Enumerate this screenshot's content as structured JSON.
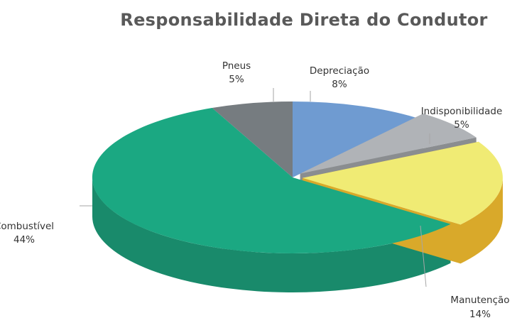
{
  "chart_data": {
    "type": "pie",
    "title": "Responsabilidade Direta do Condutor",
    "slices": [
      {
        "label": "Depreciação",
        "value": 8,
        "value_label": "8%",
        "color": "#6f9bd1",
        "side_color": "#4a7ea3"
      },
      {
        "label": "Indisponibilidade",
        "value": 5,
        "value_label": "5%",
        "color": "#b0b3b7",
        "side_color": "#8a8d90"
      },
      {
        "label": "Manutenção",
        "value": 14,
        "value_label": "14%",
        "color": "#f0eb74",
        "side_color": "#d9a92a"
      },
      {
        "label": "Combustível",
        "value": 44,
        "value_label": "44%",
        "color": "#1ba882",
        "side_color": "#198a6b"
      },
      {
        "label": "Pneus",
        "value": 5,
        "value_label": "5%",
        "color": "#767c80",
        "side_color": "#5c6164"
      }
    ],
    "legend": "none",
    "data_labels": "outside-with-leader-lines"
  }
}
